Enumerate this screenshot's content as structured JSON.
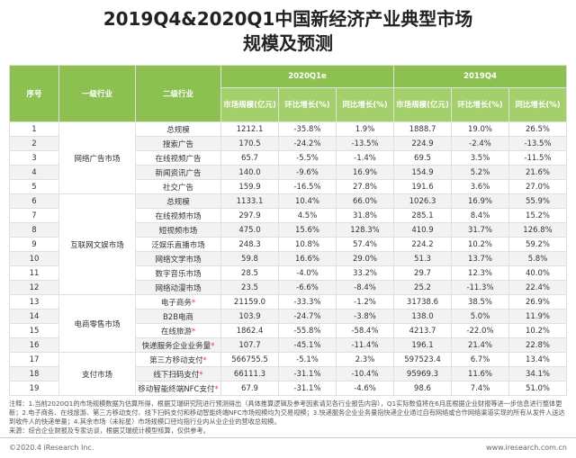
{
  "header": {
    "title_lines": [
      "2019Q4&2020Q1中国新经济产业典型市场",
      "规模及预测"
    ]
  },
  "table": {
    "head": {
      "serial": "序号",
      "level1": "一级行业",
      "level2": "二级行业",
      "periods": [
        "2020Q1e",
        "2019Q4"
      ],
      "metrics": [
        "市场规模(亿元)",
        "环比增长(%)",
        "同比增长(%)"
      ]
    },
    "groups": [
      {
        "name": "网络广告市场",
        "rows": [
          [
            "1",
            "总规模",
            "1212.1",
            "-35.8%",
            "1.9%",
            "1888.7",
            "19.0%",
            "26.5%"
          ],
          [
            "2",
            "搜索广告",
            "170.5",
            "-24.2%",
            "-13.5%",
            "224.9",
            "-2.4%",
            "-13.5%"
          ],
          [
            "3",
            "在线视频广告",
            "65.7",
            "-5.5%",
            "-1.4%",
            "69.5",
            "3.5%",
            "-11.5%"
          ],
          [
            "4",
            "新闻资讯广告",
            "140.0",
            "-9.6%",
            "16.9%",
            "154.9",
            "5.2%",
            "21.6%"
          ],
          [
            "5",
            "社交广告",
            "159.9",
            "-16.5%",
            "27.8%",
            "191.6",
            "3.6%",
            "27.0%"
          ]
        ]
      },
      {
        "name": "互联网文娱市场",
        "rows": [
          [
            "6",
            "总规模",
            "1133.1",
            "10.4%",
            "66.0%",
            "1026.3",
            "16.9%",
            "55.9%"
          ],
          [
            "7",
            "在线视频市场",
            "297.9",
            "4.5%",
            "31.8%",
            "285.1",
            "8.4%",
            "15.2%"
          ],
          [
            "8",
            "短视频市场",
            "475.0",
            "15.6%",
            "128.3%",
            "410.9",
            "31.7%",
            "126.8%"
          ],
          [
            "9",
            "泛娱乐直播市场",
            "248.3",
            "10.8%",
            "57.4%",
            "224.2",
            "10.2%",
            "59.2%"
          ],
          [
            "10",
            "网络文学市场",
            "59.8",
            "16.6%",
            "29.0%",
            "51.3",
            "13.7%",
            "5.8%"
          ],
          [
            "11",
            "数字音乐市场",
            "28.5",
            "-4.0%",
            "33.2%",
            "29.7",
            "12.3%",
            "40.0%"
          ],
          [
            "12",
            "网络动漫市场",
            "23.5",
            "-6.6%",
            "-8.4%",
            "25.2",
            "-11.3%",
            "22.4%"
          ]
        ]
      },
      {
        "name": "电商零售市场",
        "rows": [
          [
            "13",
            "电子商务*",
            "21159.0",
            "-33.3%",
            "-1.2%",
            "31738.6",
            "38.5%",
            "26.9%"
          ],
          [
            "14",
            "B2B电商",
            "103.9",
            "-24.7%",
            "-3.8%",
            "138.0",
            "5.0%",
            "11.9%"
          ],
          [
            "15",
            "在线旅游*",
            "1862.4",
            "-55.8%",
            "-58.4%",
            "4213.7",
            "-22.0%",
            "10.2%"
          ],
          [
            "16",
            "快递服务企业业务量*",
            "107.7",
            "-45.1%",
            "-11.4%",
            "196.1",
            "21.4%",
            "22.8%"
          ]
        ]
      },
      {
        "name": "支付市场",
        "rows": [
          [
            "17",
            "第三方移动支付*",
            "566755.5",
            "-5.1%",
            "2.3%",
            "597523.4",
            "6.7%",
            "13.4%"
          ],
          [
            "18",
            "线下扫码支付*",
            "66111.3",
            "-31.1%",
            "-10.4%",
            "95969.3",
            "11.6%",
            "34.1%"
          ],
          [
            "19",
            "移动智能终端NFC支付*",
            "67.9",
            "-31.1%",
            "-4.6%",
            "98.6",
            "7.4%",
            "51.0%"
          ]
        ]
      }
    ]
  },
  "notes": [
    "注释：1.当前2020Q1的市场规模数据为估算所得，根据艾瑞研究院进行预测得出（具体推算逻辑及参考因素请见各行业报告内容），Q1实际数值将在6月底根据企业财报等进一步信息进行整体更新；2.电子商务、在线旅游、第三方移动支付、线下扫码支付和移动智能终端NFC市场规模均为交易规模；3.快递服务企业业务量指快递企业通过自有网络或合作网络渠道实现的所有从发件人送达到收件人的快递单量；4.其余市场（未标星）市场规模口径均指行业内从业企业的营收总规模。",
    "来源：综合企业财报及专家访谈，根据艾瑞统计模型核算，仅供参考。"
  ],
  "footer": {
    "left": "©2020.4 iResearch Inc.",
    "right": "www.iresearch.com.cn"
  }
}
